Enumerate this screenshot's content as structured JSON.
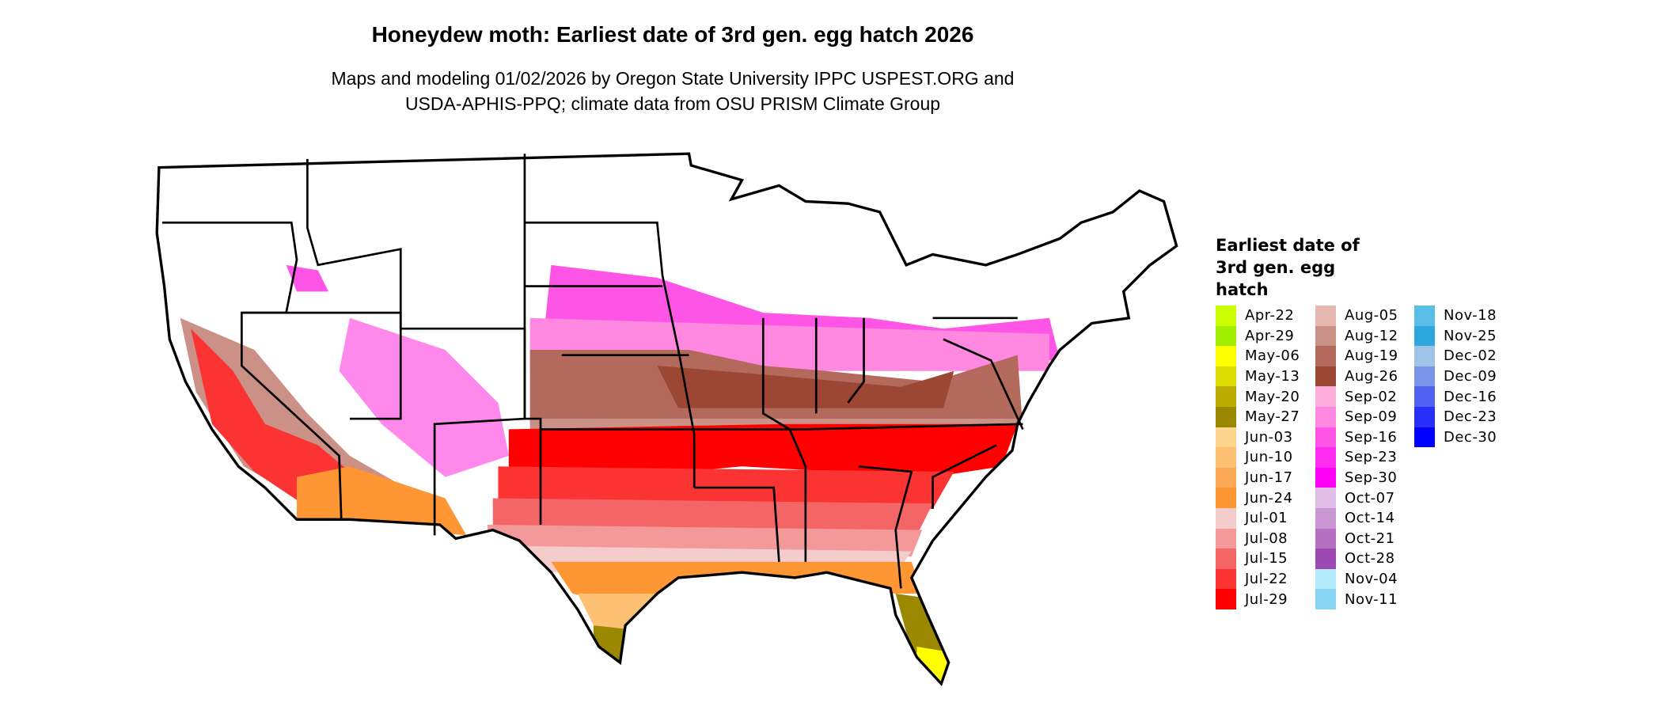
{
  "title": "Honeydew moth: Earliest date of 3rd gen. egg hatch 2026",
  "subtitle_line1": "Maps and modeling 01/02/2026 by Oregon State University IPPC USPEST.ORG and",
  "subtitle_line2": "USDA-APHIS-PPQ; climate data from OSU PRISM Climate Group",
  "legend": {
    "title": "Earliest date of 3rd gen. egg hatch",
    "columns": [
      [
        {
          "label": "Apr-22",
          "color": "#CCFF00"
        },
        {
          "label": "Apr-29",
          "color": "#A2EE00"
        },
        {
          "label": "May-06",
          "color": "#FFFF00"
        },
        {
          "label": "May-13",
          "color": "#DDDD00"
        },
        {
          "label": "May-20",
          "color": "#BBAA00"
        },
        {
          "label": "May-27",
          "color": "#998800"
        },
        {
          "label": "Jun-03",
          "color": "#FED58D"
        },
        {
          "label": "Jun-10",
          "color": "#FEC073"
        },
        {
          "label": "Jun-17",
          "color": "#FCAA55"
        },
        {
          "label": "Jun-24",
          "color": "#FE9634"
        },
        {
          "label": "Jul-01",
          "color": "#F4CCCC"
        },
        {
          "label": "Jul-08",
          "color": "#F49999"
        },
        {
          "label": "Jul-15",
          "color": "#F46666"
        },
        {
          "label": "Jul-22",
          "color": "#FC3333"
        },
        {
          "label": "Jul-29",
          "color": "#FF0000"
        }
      ],
      [
        {
          "label": "Aug-05",
          "color": "#E6B8AF"
        },
        {
          "label": "Aug-12",
          "color": "#CC9186"
        },
        {
          "label": "Aug-19",
          "color": "#B3695C"
        },
        {
          "label": "Aug-26",
          "color": "#9C4634"
        },
        {
          "label": "Sep-02",
          "color": "#FFAEDC"
        },
        {
          "label": "Sep-09",
          "color": "#FF88E0"
        },
        {
          "label": "Sep-16",
          "color": "#FF55E6"
        },
        {
          "label": "Sep-23",
          "color": "#FF2BEE"
        },
        {
          "label": "Sep-30",
          "color": "#FF00F6"
        },
        {
          "label": "Oct-07",
          "color": "#DFBDE6"
        },
        {
          "label": "Oct-14",
          "color": "#CA96D4"
        },
        {
          "label": "Oct-21",
          "color": "#B570C4"
        },
        {
          "label": "Oct-28",
          "color": "#9E48B4"
        },
        {
          "label": "Nov-04",
          "color": "#B2ECFC"
        },
        {
          "label": "Nov-11",
          "color": "#86D4F2"
        }
      ],
      [
        {
          "label": "Nov-18",
          "color": "#5BBEE8"
        },
        {
          "label": "Nov-25",
          "color": "#2EA8DC"
        },
        {
          "label": "Dec-02",
          "color": "#A0C4E8"
        },
        {
          "label": "Dec-09",
          "color": "#7B94EA"
        },
        {
          "label": "Dec-16",
          "color": "#5262F0"
        },
        {
          "label": "Dec-23",
          "color": "#2A2EFA"
        },
        {
          "label": "Dec-30",
          "color": "#0000FF"
        }
      ]
    ]
  }
}
